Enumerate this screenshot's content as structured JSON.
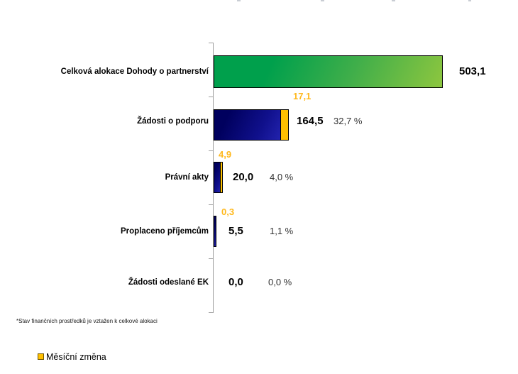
{
  "chart_data": {
    "type": "bar",
    "orientation": "horizontal",
    "title": "",
    "categories": [
      "Celková alokace Dohody o partnerství",
      "Žádosti o podporu",
      "Právní akty",
      "Proplaceno příjemcům",
      "Žádosti odeslané EK"
    ],
    "series": [
      {
        "name": "Stav finančních prostředků",
        "values": [
          503.1,
          164.5,
          20.0,
          5.5,
          0.0
        ]
      },
      {
        "name": "Měsíční změna",
        "values": [
          0,
          17.1,
          4.9,
          0.3,
          0
        ]
      }
    ],
    "percent_of_total_allocation": [
      null,
      32.7,
      4.0,
      1.1,
      0.0
    ],
    "xlim": [
      0,
      503.1
    ],
    "value_axis_visible": false,
    "grid": false,
    "legend_position": "bottom-left",
    "bar_colors": [
      "green-gradient",
      "navy-gradient",
      "navy-gradient",
      "navy-gradient",
      "none"
    ]
  },
  "rows": [
    {
      "label": "Celková alokace Dohody o partnerství",
      "value_label": "503,1",
      "percent_label": "",
      "change_label": ""
    },
    {
      "label": "Žádosti o podporu",
      "value_label": "164,5",
      "percent_label": "32,7 %",
      "change_label": "17,1"
    },
    {
      "label": "Právní akty",
      "value_label": "20,0",
      "percent_label": "4,0 %",
      "change_label": "4,9"
    },
    {
      "label": "Proplaceno příjemcům",
      "value_label": "5,5",
      "percent_label": "1,1 %",
      "change_label": "0,3"
    },
    {
      "label": "Žádosti odeslané EK",
      "value_label": "0,0",
      "percent_label": "0,0 %",
      "change_label": ""
    }
  ],
  "footnote": "*Stav finančních prostředků je vztažen k celkové alokaci",
  "legend": {
    "label": "Měsíční změna",
    "swatch_color": "#FFC000"
  },
  "colors": {
    "green_dark": "#00A04C",
    "green_light": "#8DC63F",
    "navy_dark": "#00005E",
    "navy_light": "#2222AD",
    "change_yellow": "#FFC000",
    "change_label_text": "#FFB81C",
    "axis_gray": "#9E9E9E"
  }
}
